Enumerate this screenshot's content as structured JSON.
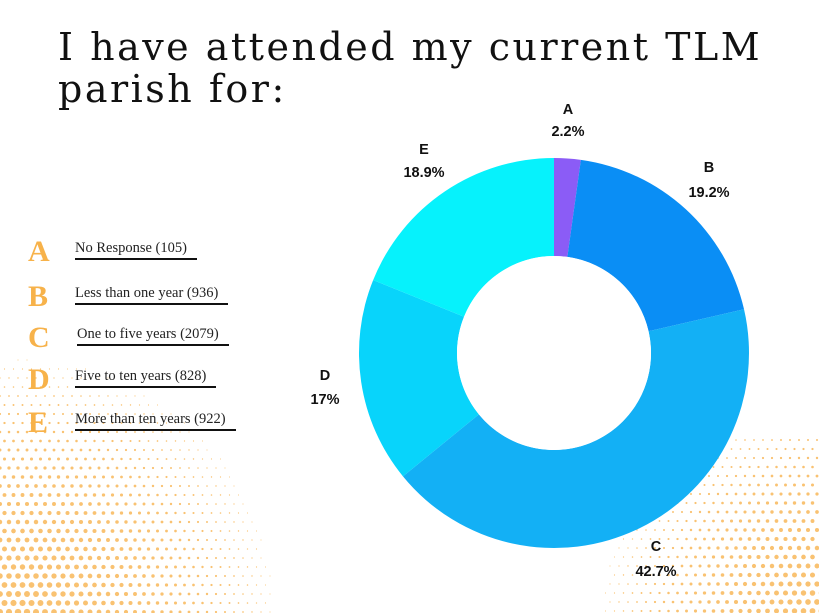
{
  "title": "I have attended my current TLM parish for:",
  "colors": {
    "accent_letters": "#f7b24a",
    "dots": "#f9c272",
    "background": "#ffffff"
  },
  "legend": [
    {
      "letter": "A",
      "text": "No Response (105)"
    },
    {
      "letter": "B",
      "text": "Less than one year (936)"
    },
    {
      "letter": "C",
      "text": "One to five years (2079)"
    },
    {
      "letter": "D",
      "text": "Five to ten years (828)"
    },
    {
      "letter": "E",
      "text": "More than ten years (922)"
    }
  ],
  "chart_data": {
    "type": "pie",
    "title": "I have attended my current TLM parish for:",
    "donut": true,
    "direction": "clockwise",
    "start": "top",
    "legend_position": "left",
    "categories": [
      "A",
      "B",
      "C",
      "D",
      "E"
    ],
    "values": [
      2.2,
      19.2,
      42.7,
      17,
      18.9
    ],
    "labels": [
      "2.2%",
      "19.2%",
      "42.7%",
      "17%",
      "18.9%"
    ],
    "counts": [
      105,
      936,
      2079,
      828,
      922
    ],
    "colors": [
      "#8b5cf6",
      "#0a8ef5",
      "#13b0f5",
      "#08d4fb",
      "#06f2fc"
    ]
  }
}
